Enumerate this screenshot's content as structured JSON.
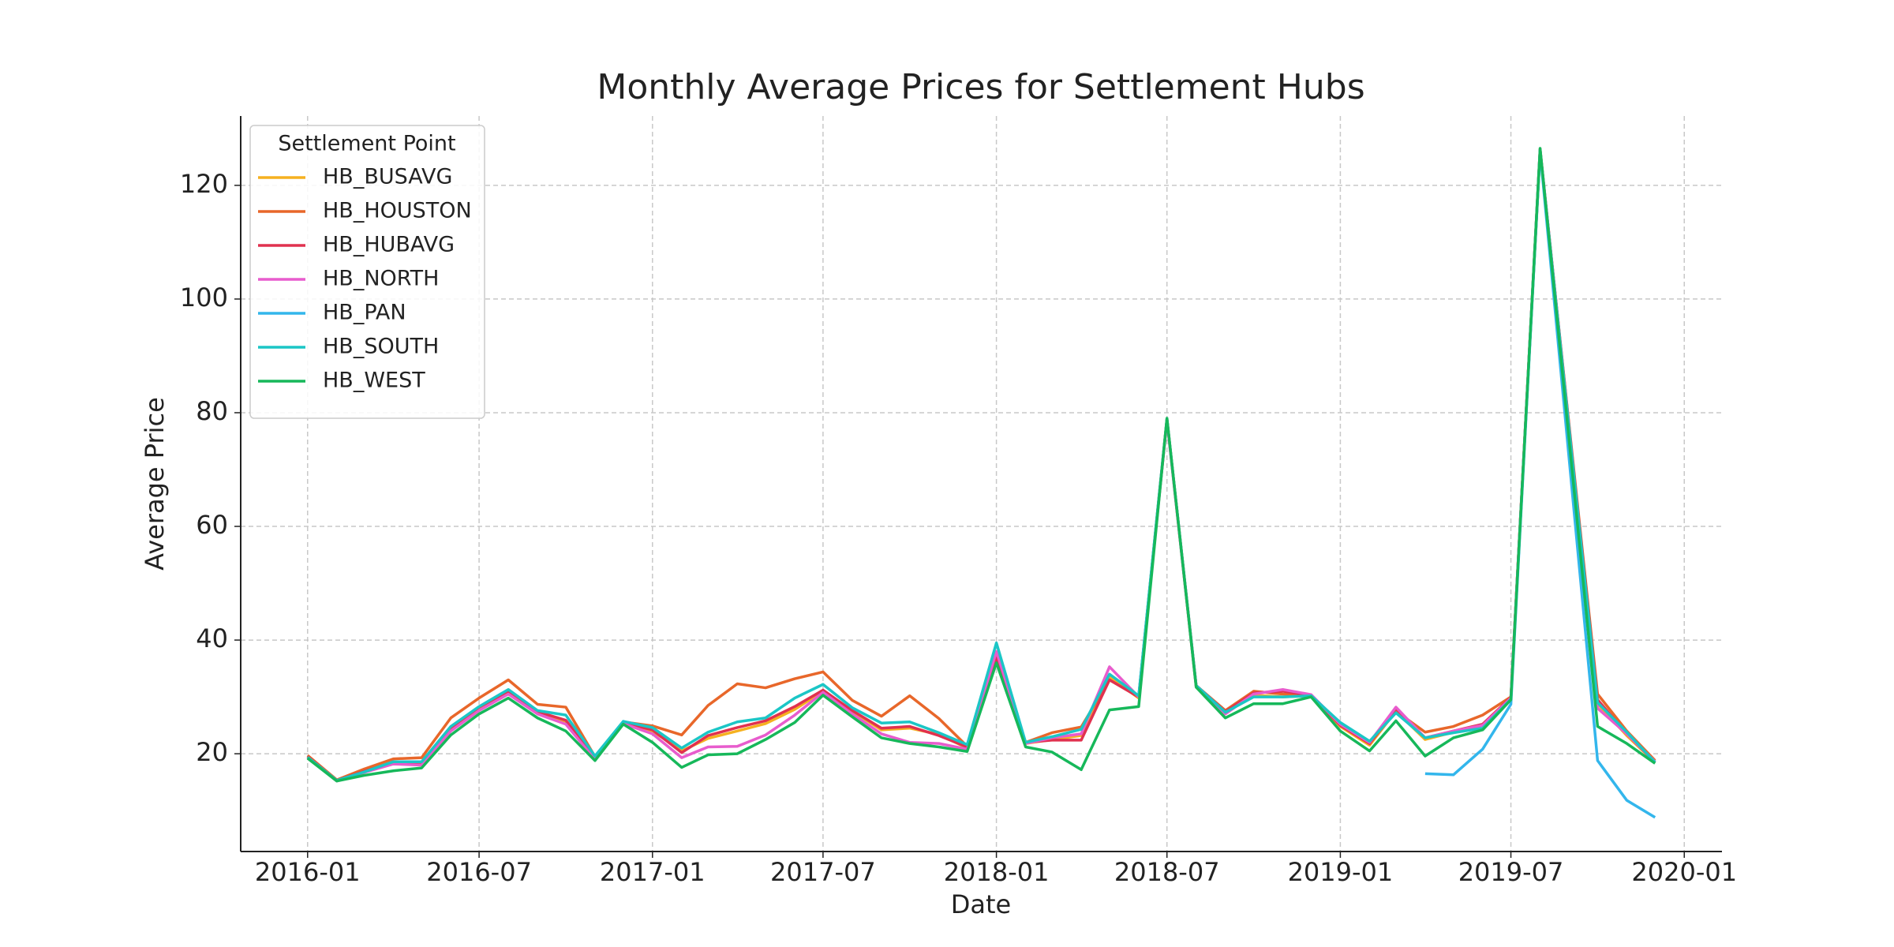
{
  "chart_data": {
    "type": "line",
    "title": "Monthly Average Prices for Settlement Hubs",
    "x_label": "Date",
    "y_label": "Average Price",
    "legend_title": "Settlement Point",
    "legend_position": "upper left",
    "grid": true,
    "x": [
      "2016-01",
      "2016-02",
      "2016-03",
      "2016-04",
      "2016-05",
      "2016-06",
      "2016-07",
      "2016-08",
      "2016-09",
      "2016-10",
      "2016-11",
      "2016-12",
      "2017-01",
      "2017-02",
      "2017-03",
      "2017-04",
      "2017-05",
      "2017-06",
      "2017-07",
      "2017-08",
      "2017-09",
      "2017-10",
      "2017-11",
      "2017-12",
      "2018-01",
      "2018-02",
      "2018-03",
      "2018-04",
      "2018-05",
      "2018-06",
      "2018-07",
      "2018-08",
      "2018-09",
      "2018-10",
      "2018-11",
      "2018-12",
      "2019-01",
      "2019-02",
      "2019-03",
      "2019-04",
      "2019-05",
      "2019-06",
      "2019-07",
      "2019-08",
      "2019-10",
      "2019-11",
      "2019-12"
    ],
    "xlim": [
      "2015-10-22",
      "2020-02-10"
    ],
    "xticks": [
      "2016-01",
      "2016-07",
      "2017-01",
      "2017-07",
      "2018-01",
      "2018-07",
      "2019-01",
      "2019-07",
      "2020-01"
    ],
    "ylim": [
      2.8,
      132.2
    ],
    "yticks": [
      20,
      40,
      60,
      80,
      100,
      120
    ],
    "series": [
      {
        "name": "HB_BUSAVG",
        "color": "#f5b120",
        "values": [
          19.4,
          15.3,
          16.8,
          18.4,
          18.4,
          24.5,
          28,
          30.8,
          27.3,
          25.7,
          19.2,
          25.4,
          24,
          20.5,
          22.7,
          24,
          25.3,
          27.8,
          31,
          27.5,
          24.2,
          24.5,
          23.4,
          21,
          37.5,
          21.8,
          22.5,
          23.2,
          33.5,
          29.8,
          78.8,
          31.8,
          27.2,
          30.3,
          30,
          30.2,
          24.8,
          21.5,
          27.5,
          22.5,
          23.8,
          25,
          29.8,
          126.3,
          28.8,
          23.2,
          18.5
        ]
      },
      {
        "name": "HB_HOUSTON",
        "color": "#e8672a",
        "values": [
          19.7,
          15.4,
          17.3,
          19.1,
          19.3,
          26.3,
          29.8,
          33,
          28.7,
          28.2,
          19.5,
          25.6,
          24.9,
          23.3,
          28.5,
          32.3,
          31.6,
          33.2,
          34.4,
          29.4,
          26.6,
          30.2,
          26.2,
          21.3,
          36.5,
          22,
          23.7,
          24.7,
          33,
          30,
          78.8,
          32,
          27.6,
          31,
          30.5,
          30.3,
          25,
          21.8,
          27.5,
          23.8,
          24.8,
          26.8,
          30,
          126,
          30.5,
          24,
          18.8
        ]
      },
      {
        "name": "HB_HUBAVG",
        "color": "#e0314f",
        "values": [
          19.5,
          15.3,
          16.9,
          18.5,
          18.5,
          24.6,
          28.2,
          31,
          27.4,
          25.9,
          19.3,
          25.5,
          24.2,
          20.2,
          23.2,
          24.6,
          25.8,
          28.3,
          31.2,
          27.6,
          24.5,
          24.8,
          23.2,
          21.2,
          37,
          22,
          22.4,
          22.4,
          33,
          30,
          78.9,
          32,
          27.4,
          30.7,
          31,
          30.3,
          25,
          21.8,
          28,
          22.8,
          24,
          25.2,
          29.9,
          126.4,
          29.5,
          23.5,
          18.5
        ]
      },
      {
        "name": "HB_NORTH",
        "color": "#e85ccd",
        "values": [
          19.3,
          15.2,
          16.7,
          18.2,
          18,
          24,
          27.6,
          30.5,
          27,
          25.2,
          19,
          25.3,
          23.5,
          19.3,
          21.2,
          21.3,
          23.3,
          26.8,
          30.8,
          27,
          23.5,
          22,
          21.8,
          20.8,
          38,
          21.8,
          22.8,
          23.5,
          35.3,
          30,
          78.6,
          31.8,
          27,
          30.5,
          31.3,
          30.4,
          25.2,
          22,
          28.2,
          22.8,
          24,
          25,
          29.8,
          126.3,
          28,
          23.5,
          18.6
        ]
      },
      {
        "name": "HB_PAN",
        "color": "#33b6ec",
        "values": [
          null,
          null,
          null,
          null,
          null,
          null,
          null,
          null,
          null,
          null,
          null,
          null,
          null,
          null,
          null,
          null,
          null,
          null,
          null,
          null,
          null,
          null,
          null,
          null,
          null,
          null,
          null,
          null,
          null,
          null,
          null,
          null,
          null,
          null,
          null,
          null,
          null,
          null,
          null,
          16.5,
          16.3,
          20.8,
          28.7,
          126,
          18.8,
          11.8,
          8.8
        ]
      },
      {
        "name": "HB_SOUTH",
        "color": "#1bc6c6",
        "values": [
          19.4,
          15.3,
          16.8,
          18.6,
          18.6,
          24.8,
          28.3,
          31.3,
          27.6,
          26.8,
          19.6,
          25.7,
          24.6,
          21,
          23.8,
          25.6,
          26.3,
          29.8,
          32.2,
          28.1,
          25.4,
          25.6,
          23.7,
          21.6,
          39.5,
          22,
          23,
          24.3,
          34,
          30.2,
          79,
          32,
          27.3,
          30,
          30,
          30.2,
          25.5,
          22.2,
          27.2,
          22.8,
          23.7,
          24.5,
          29.6,
          126.3,
          29,
          23.8,
          18.5
        ]
      },
      {
        "name": "HB_WEST",
        "color": "#16b85a",
        "values": [
          19.2,
          15.2,
          16.2,
          17,
          17.5,
          23.3,
          27,
          29.8,
          26.3,
          24,
          18.8,
          25.2,
          22,
          17.6,
          19.8,
          20,
          22.5,
          25.5,
          30.3,
          26.5,
          22.8,
          21.8,
          21.2,
          20.4,
          36,
          21.2,
          20.3,
          17.2,
          27.7,
          28.3,
          79,
          31.7,
          26.3,
          28.8,
          28.8,
          30,
          24,
          20.5,
          25.8,
          19.6,
          22.8,
          24.2,
          29.5,
          126.5,
          24.8,
          21.8,
          18.3
        ]
      }
    ]
  }
}
